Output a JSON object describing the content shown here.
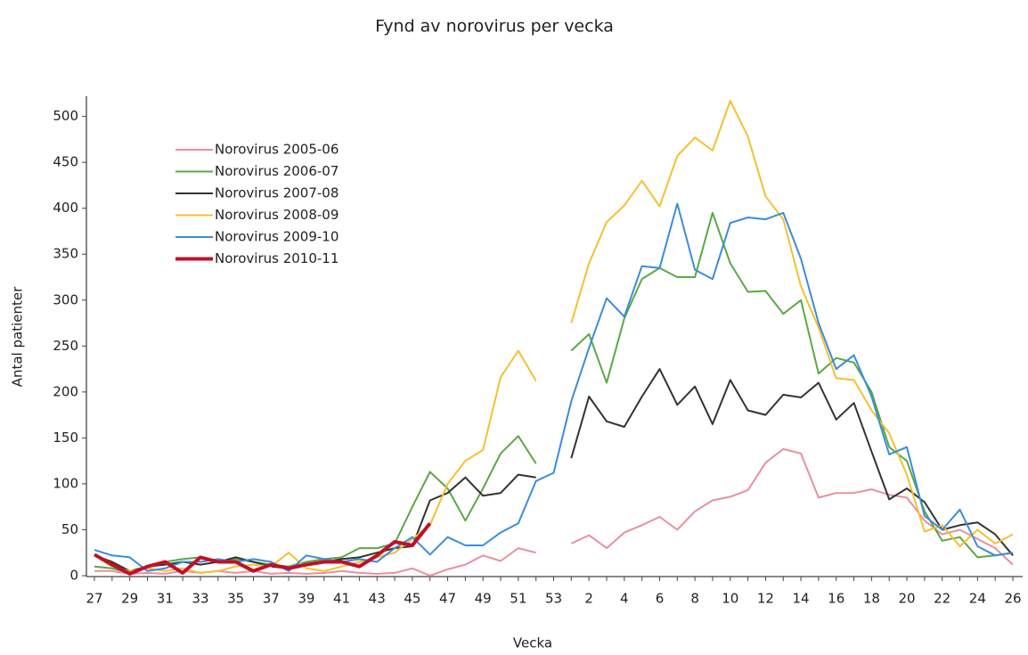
{
  "chart_data": {
    "type": "line",
    "title": "Fynd av norovirus per vecka",
    "x_label": "Vecka",
    "y_label": "Antal patienter",
    "categories": [
      "27",
      null,
      "29",
      null,
      "31",
      null,
      "33",
      null,
      "35",
      null,
      "37",
      null,
      "39",
      null,
      "41",
      null,
      "43",
      null,
      "45",
      null,
      "47",
      null,
      "49",
      null,
      "51",
      null,
      "53",
      null,
      "2",
      null,
      "4",
      null,
      "6",
      null,
      "8",
      null,
      "10",
      null,
      "12",
      null,
      "14",
      null,
      "16",
      null,
      "18",
      null,
      "20",
      null,
      "22",
      null,
      "24",
      null,
      "26"
    ],
    "ylim": [
      0,
      520
    ],
    "yticks": [
      0,
      50,
      100,
      150,
      200,
      250,
      300,
      350,
      400,
      450,
      500
    ],
    "grid": false,
    "legend": "upper left",
    "series": [
      {
        "name": "Norovirus 2005-06",
        "color": "#e8909f",
        "width": 2,
        "values": [
          5,
          5,
          2,
          3,
          2,
          5,
          3,
          5,
          3,
          5,
          2,
          3,
          2,
          3,
          5,
          3,
          2,
          3,
          8,
          0,
          7,
          12,
          22,
          16,
          30,
          25,
          null,
          35,
          44,
          30,
          47,
          55,
          64,
          50,
          70,
          82,
          86,
          93,
          123,
          138,
          133,
          85,
          90,
          90,
          94,
          88,
          85,
          60,
          45,
          50,
          40,
          30,
          12
        ]
      },
      {
        "name": "Norovirus 2006-07",
        "color": "#5aa845",
        "width": 2,
        "values": [
          10,
          8,
          3,
          10,
          15,
          18,
          20,
          15,
          18,
          15,
          12,
          10,
          15,
          18,
          20,
          30,
          30,
          35,
          75,
          113,
          95,
          60,
          95,
          133,
          152,
          122,
          null,
          245,
          263,
          210,
          280,
          323,
          335,
          325,
          325,
          395,
          340,
          309,
          310,
          285,
          300,
          220,
          237,
          232,
          200,
          140,
          125,
          70,
          38,
          42,
          20,
          22,
          25
        ]
      },
      {
        "name": "Norovirus 2007-08",
        "color": "#333333",
        "width": 2,
        "values": [
          22,
          15,
          5,
          10,
          12,
          15,
          12,
          15,
          20,
          15,
          10,
          8,
          12,
          15,
          18,
          20,
          25,
          30,
          32,
          82,
          90,
          107,
          87,
          90,
          110,
          107,
          null,
          128,
          195,
          168,
          162,
          195,
          225,
          186,
          206,
          165,
          213,
          180,
          175,
          197,
          194,
          210,
          170,
          188,
          135,
          83,
          95,
          80,
          50,
          55,
          58,
          45,
          22
        ]
      },
      {
        "name": "Norovirus 2008-09",
        "color": "#f5c030",
        "width": 2,
        "values": [
          22,
          10,
          5,
          8,
          5,
          8,
          3,
          5,
          10,
          12,
          10,
          25,
          8,
          5,
          10,
          15,
          20,
          25,
          40,
          55,
          100,
          125,
          137,
          216,
          245,
          212,
          null,
          275,
          340,
          385,
          403,
          430,
          402,
          457,
          477,
          463,
          517,
          478,
          413,
          388,
          315,
          270,
          215,
          213,
          180,
          155,
          110,
          48,
          55,
          32,
          50,
          35,
          45
        ]
      },
      {
        "name": "Norovirus 2009-10",
        "color": "#3a8ddb",
        "width": 2,
        "values": [
          28,
          22,
          20,
          5,
          8,
          15,
          15,
          18,
          15,
          18,
          15,
          5,
          22,
          18,
          15,
          18,
          15,
          30,
          42,
          23,
          42,
          33,
          33,
          47,
          57,
          103,
          112,
          190,
          248,
          302,
          282,
          337,
          335,
          405,
          333,
          323,
          384,
          390,
          388,
          395,
          345,
          275,
          225,
          240,
          195,
          132,
          140,
          65,
          50,
          72,
          32,
          22,
          25
        ]
      },
      {
        "name": "Norovirus 2010-11",
        "color": "#c0102a",
        "width": 4,
        "values": [
          23,
          12,
          2,
          10,
          15,
          3,
          20,
          15,
          15,
          5,
          12,
          8,
          12,
          15,
          15,
          10,
          22,
          37,
          33,
          57,
          null,
          null,
          null,
          null,
          null,
          null,
          null,
          null,
          null,
          null,
          null,
          null,
          null,
          null,
          null,
          null,
          null,
          null,
          null,
          null,
          null,
          null,
          null,
          null,
          null,
          null,
          null,
          null,
          null,
          null,
          null,
          null,
          null
        ]
      }
    ]
  }
}
